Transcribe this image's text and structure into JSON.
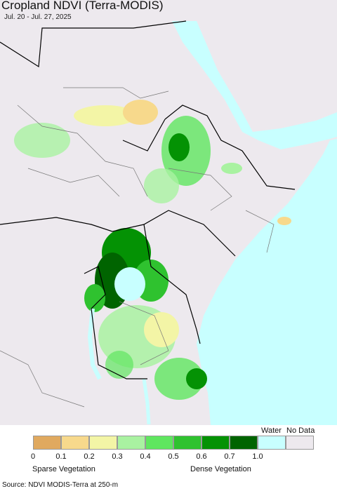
{
  "header": {
    "title": "Cropland NDVI (Terra-MODIS)",
    "subtitle": "Jul. 20 - Jul. 27, 2025"
  },
  "legend": {
    "colors": [
      "#e0a95f",
      "#f7d98c",
      "#f3f5a6",
      "#a9f2a1",
      "#5fe65f",
      "#2fc22f",
      "#049204",
      "#006400",
      "#c8ffff",
      "#ede9ee"
    ],
    "ticks": [
      "0",
      "0.1",
      "0.2",
      "0.3",
      "0.4",
      "0.5",
      "0.6",
      "0.7",
      "1.0"
    ],
    "water": "Water",
    "no_data": "No Data",
    "sparse": "Sparse Vegetation",
    "dense": "Dense Vegetation"
  },
  "source": "Source: NDVI MODIS-Terra at 250-m"
}
